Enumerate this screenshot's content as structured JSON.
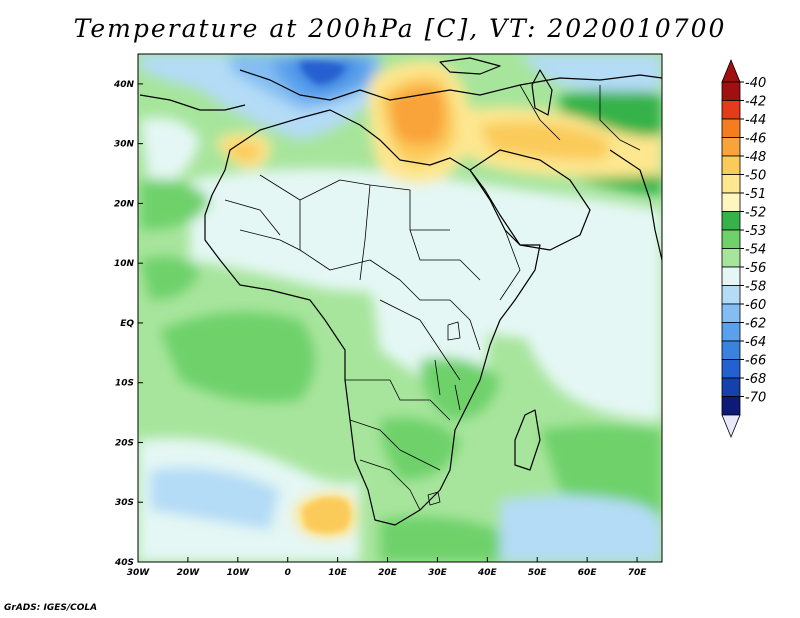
{
  "title": "Temperature at 200hPa [C], VT: 2020010700",
  "footer": "GrADS: IGES/COLA",
  "map": {
    "lon_range": [
      -30,
      75
    ],
    "lat_range": [
      -40,
      45
    ],
    "lon_ticks": [
      {
        "value": -30,
        "label": "30W"
      },
      {
        "value": -20,
        "label": "20W"
      },
      {
        "value": -10,
        "label": "10W"
      },
      {
        "value": 0,
        "label": "0"
      },
      {
        "value": 10,
        "label": "10E"
      },
      {
        "value": 20,
        "label": "20E"
      },
      {
        "value": 30,
        "label": "30E"
      },
      {
        "value": 40,
        "label": "40E"
      },
      {
        "value": 50,
        "label": "50E"
      },
      {
        "value": 60,
        "label": "60E"
      },
      {
        "value": 70,
        "label": "70E"
      }
    ],
    "lat_ticks": [
      {
        "value": 40,
        "label": "40N"
      },
      {
        "value": 30,
        "label": "30N"
      },
      {
        "value": 20,
        "label": "20N"
      },
      {
        "value": 10,
        "label": "10N"
      },
      {
        "value": 0,
        "label": "EQ"
      },
      {
        "value": -10,
        "label": "10S"
      },
      {
        "value": -20,
        "label": "20S"
      },
      {
        "value": -30,
        "label": "30S"
      },
      {
        "value": -40,
        "label": "40S"
      }
    ]
  },
  "colorbar": [
    {
      "label": "-40",
      "color": "#a01010"
    },
    {
      "label": "-42",
      "color": "#e63b1a"
    },
    {
      "label": "-44",
      "color": "#f47d20"
    },
    {
      "label": "-46",
      "color": "#f9a43a"
    },
    {
      "label": "-48",
      "color": "#fbcb5a"
    },
    {
      "label": "-50",
      "color": "#fde78f"
    },
    {
      "label": "-51",
      "color": "#fdf6bf"
    },
    {
      "label": "-52",
      "color": "#35b249"
    },
    {
      "label": "-53",
      "color": "#6ed16a"
    },
    {
      "label": "-54",
      "color": "#a7e59c"
    },
    {
      "label": "-56",
      "color": "#e4f7f4"
    },
    {
      "label": "-58",
      "color": "#b4dcf6"
    },
    {
      "label": "-60",
      "color": "#84bdf2"
    },
    {
      "label": "-62",
      "color": "#5aa0ec"
    },
    {
      "label": "-64",
      "color": "#3a82e0"
    },
    {
      "label": "-66",
      "color": "#2560d0"
    },
    {
      "label": "-68",
      "color": "#1640ac"
    },
    {
      "label": "-70",
      "color": "#0c1a78"
    }
  ],
  "colorbar_under_color": "#e8e8fa"
}
